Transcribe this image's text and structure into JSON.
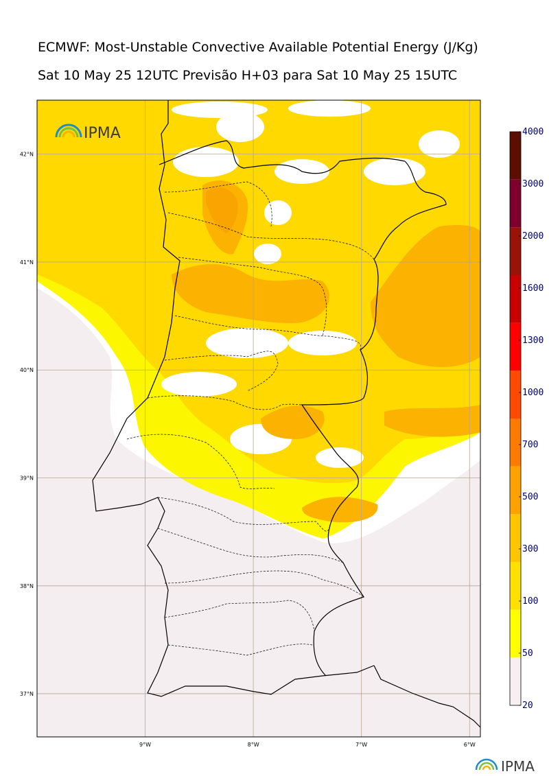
{
  "title": {
    "line1": "ECMWF: Most-Unstable Convective Available Potential Energy (J/Kg)",
    "line2": "Sat 10 May 25 12UTC Previsão H+03 para Sat 10 May 25 15UTC"
  },
  "logo_text": "IPMA",
  "footer_logo_text": "IPMA",
  "map": {
    "lon_range": [
      -10.0,
      -5.9
    ],
    "lat_range": [
      36.6,
      42.5
    ],
    "lat_ticks": [
      {
        "value": 42,
        "label": "42°N"
      },
      {
        "value": 41,
        "label": "41°N"
      },
      {
        "value": 40,
        "label": "40°N"
      },
      {
        "value": 39,
        "label": "39°N"
      },
      {
        "value": 38,
        "label": "38°N"
      },
      {
        "value": 37,
        "label": "37°N"
      }
    ],
    "lon_ticks": [
      {
        "value": -9,
        "label": "9°W"
      },
      {
        "value": -8,
        "label": "8°W"
      },
      {
        "value": -7,
        "label": "7°W"
      },
      {
        "value": -6,
        "label": "6°W"
      }
    ],
    "grid": true,
    "gridline_color": "#b6a592"
  },
  "colorbar": {
    "levels": [
      "20",
      "50",
      "100",
      "300",
      "500",
      "700",
      "1000",
      "1300",
      "1600",
      "2000",
      "3000",
      "4000"
    ],
    "colors": [
      "#f7eff1",
      "#ffff00",
      "#ffe000",
      "#ffc500",
      "#ffa200",
      "#ff7a00",
      "#ff4a00",
      "#ff0000",
      "#c80000",
      "#9a1308",
      "#7d002e",
      "#5c0f00"
    ]
  },
  "field_colors": {
    "very_low": "#f5eef0",
    "low": "#fcf700",
    "medium": "#ffd900",
    "high": "#fbb200",
    "higher": "#f9a400"
  }
}
